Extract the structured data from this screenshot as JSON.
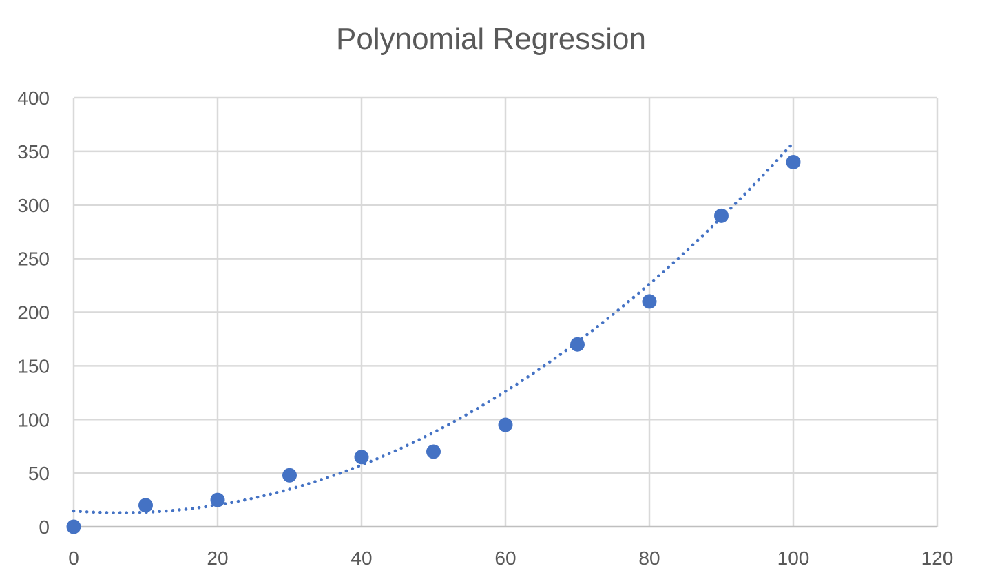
{
  "chart_data": {
    "type": "scatter",
    "title": "Polynomial Regression",
    "xlabel": "",
    "ylabel": "",
    "xlim": [
      0,
      120
    ],
    "ylim": [
      0,
      400
    ],
    "x_ticks": [
      0,
      20,
      40,
      60,
      80,
      100,
      120
    ],
    "y_ticks": [
      0,
      50,
      100,
      150,
      200,
      250,
      300,
      350,
      400
    ],
    "grid": true,
    "legend": "none",
    "series": [
      {
        "points": [
          {
            "x": 0,
            "y": 0
          },
          {
            "x": 10,
            "y": 20
          },
          {
            "x": 20,
            "y": 25
          },
          {
            "x": 30,
            "y": 48
          },
          {
            "x": 40,
            "y": 65
          },
          {
            "x": 50,
            "y": 70
          },
          {
            "x": 60,
            "y": 95
          },
          {
            "x": 70,
            "y": 170
          },
          {
            "x": 80,
            "y": 210
          },
          {
            "x": 90,
            "y": 290
          },
          {
            "x": 100,
            "y": 340
          }
        ],
        "color": "#4472C4"
      }
    ],
    "trendline": {
      "type": "polynomial",
      "order": 2,
      "style": "dotted",
      "color": "#4472C4",
      "coefficients": [
        0.0394,
        -0.506,
        14.7
      ]
    }
  }
}
